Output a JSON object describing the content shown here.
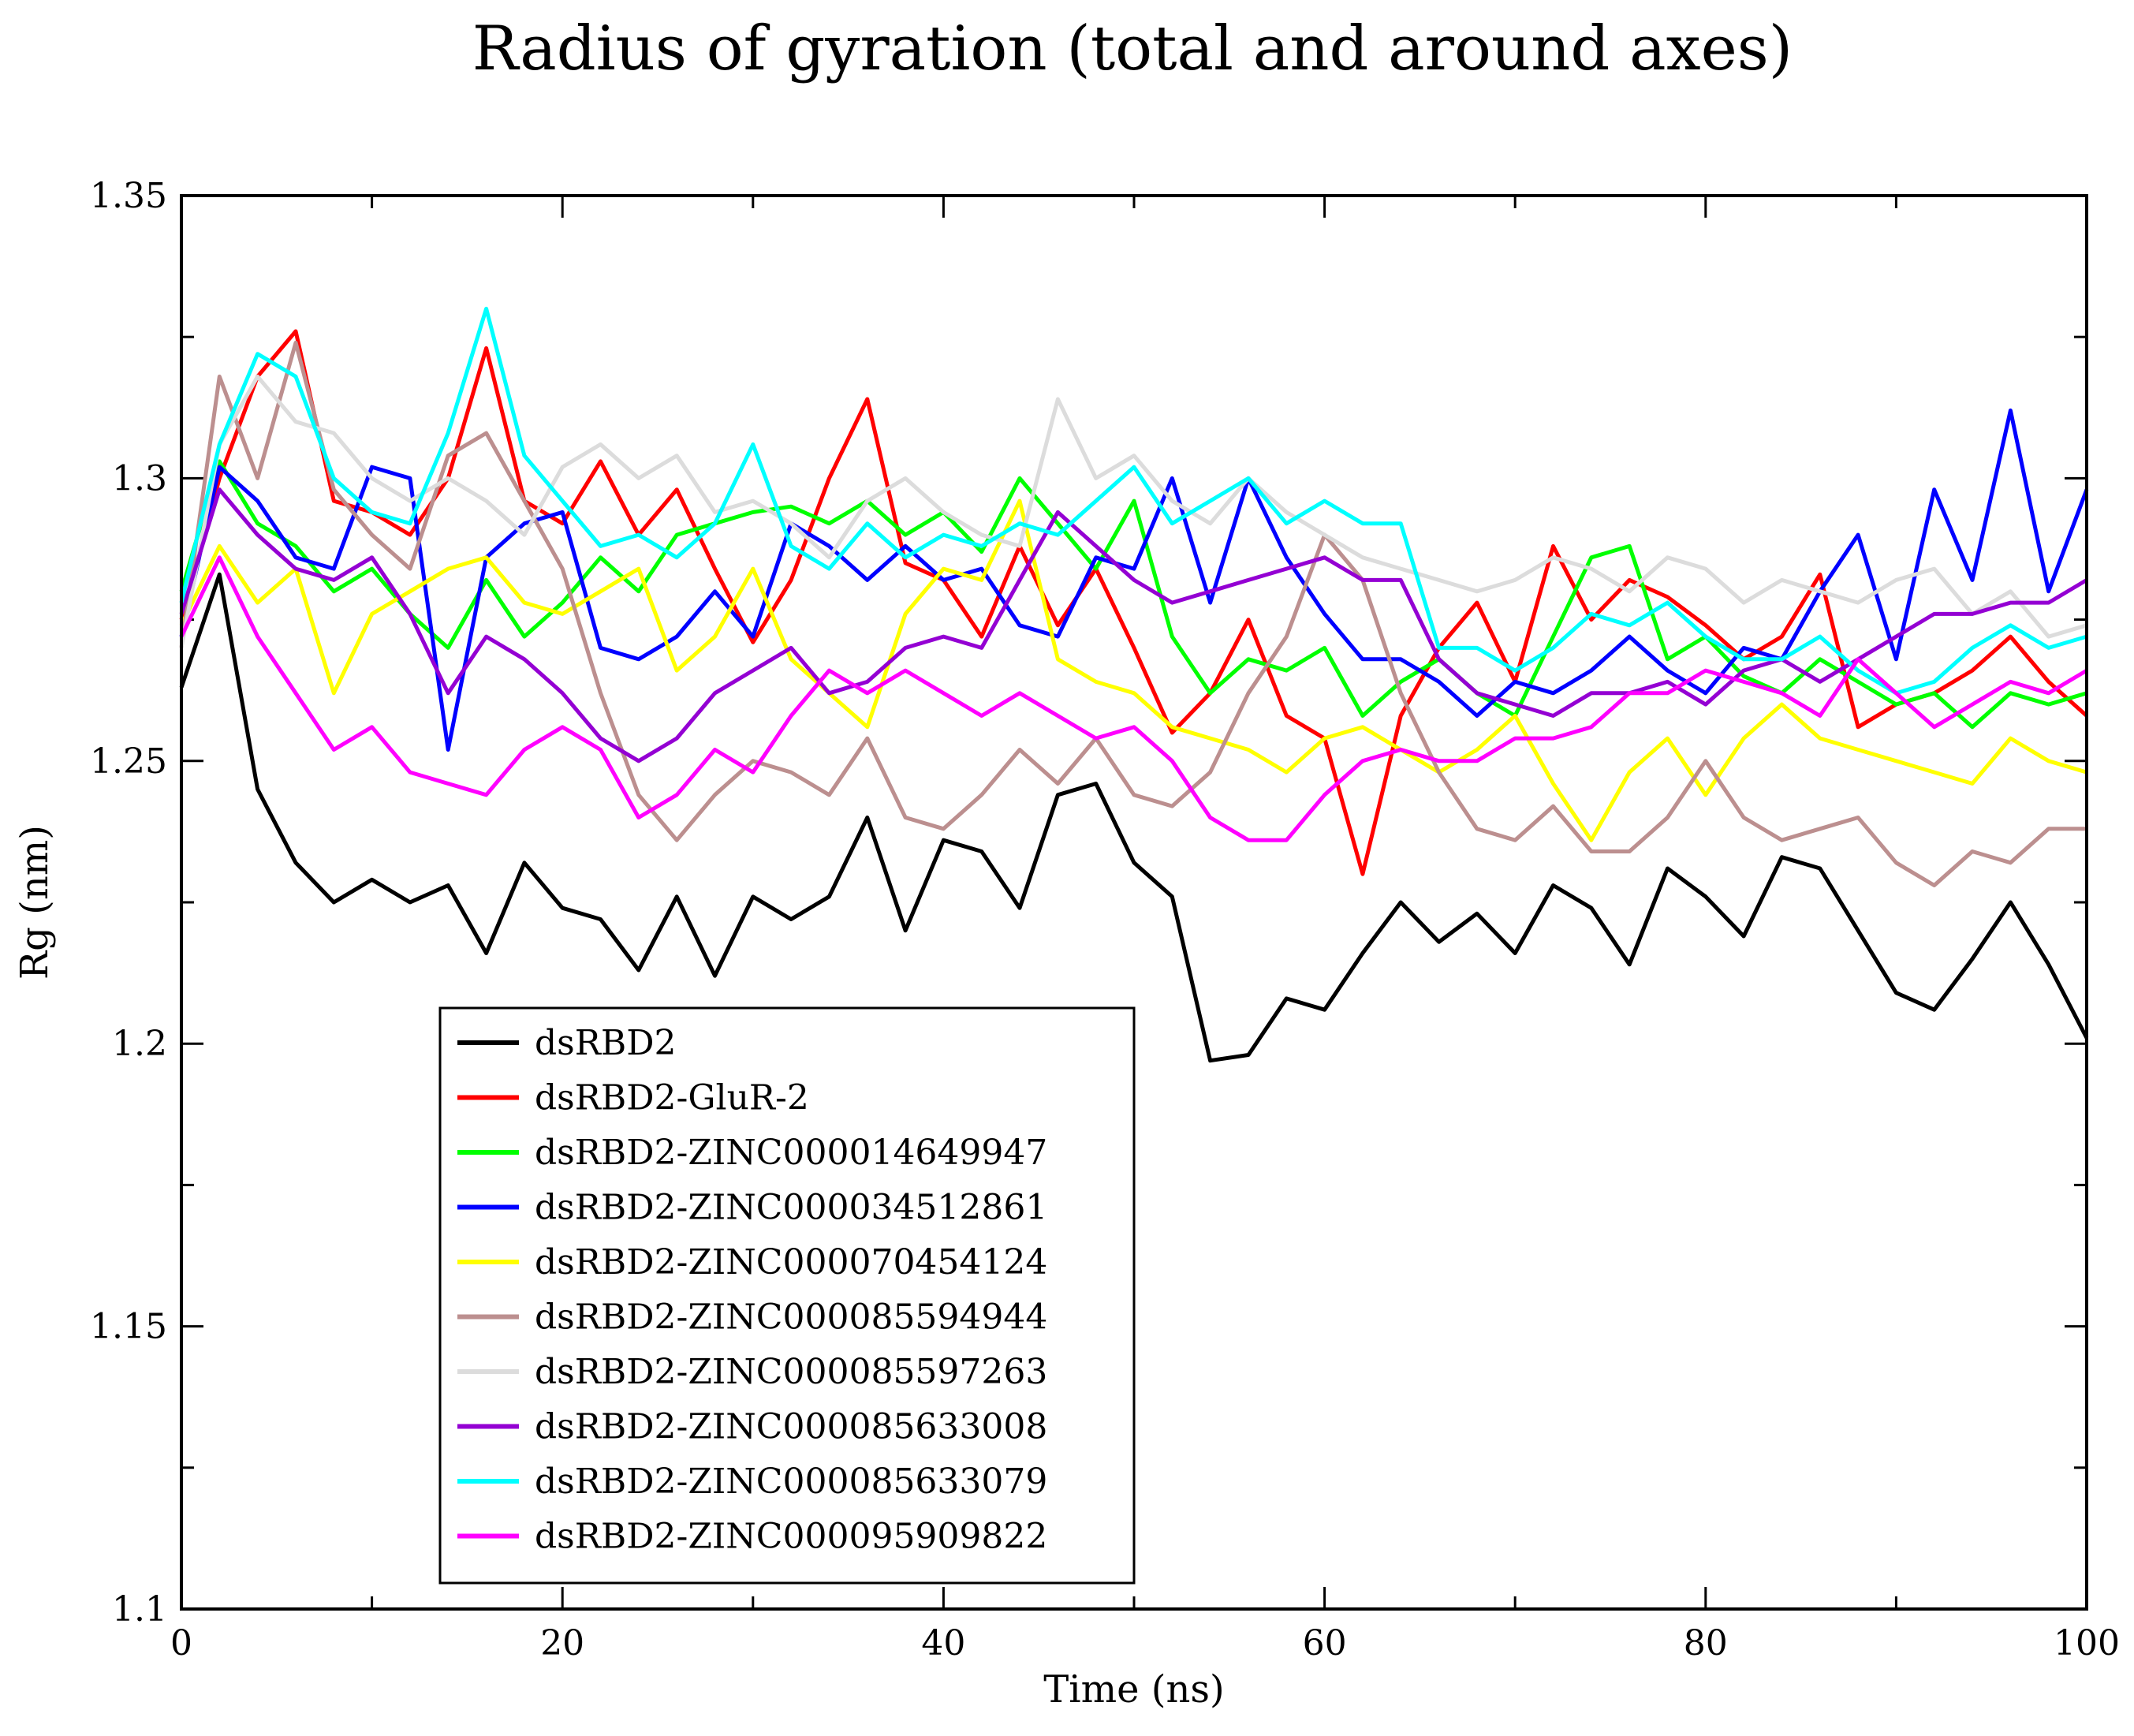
{
  "chart_data": {
    "type": "line",
    "title": "Radius of gyration (total and around axes)",
    "xlabel": "Time (ns)",
    "ylabel": "Rg (nm)",
    "xlim": [
      0,
      100
    ],
    "ylim": [
      1.1,
      1.35
    ],
    "xticks": [
      0,
      20,
      40,
      60,
      80,
      100
    ],
    "xtick_labels": [
      "0",
      "20",
      "40",
      "60",
      "80",
      "100"
    ],
    "yticks": [
      1.1,
      1.15,
      1.2,
      1.25,
      1.3,
      1.35
    ],
    "ytick_labels": [
      "1.1",
      "1.15",
      "1.2",
      "1.25",
      "1.3",
      "1.35"
    ],
    "legend_position": "bottom-left",
    "x": [
      0,
      2,
      4,
      6,
      8,
      10,
      12,
      14,
      16,
      18,
      20,
      22,
      24,
      26,
      28,
      30,
      32,
      34,
      36,
      38,
      40,
      42,
      44,
      46,
      48,
      50,
      52,
      54,
      56,
      58,
      60,
      62,
      64,
      66,
      68,
      70,
      72,
      74,
      76,
      78,
      80,
      82,
      84,
      86,
      88,
      90,
      92,
      94,
      96,
      98,
      100
    ],
    "series": [
      {
        "name": "dsRBD2",
        "color": "#000000",
        "values": [
          1.263,
          1.283,
          1.245,
          1.232,
          1.225,
          1.229,
          1.225,
          1.228,
          1.216,
          1.232,
          1.224,
          1.222,
          1.213,
          1.226,
          1.212,
          1.226,
          1.222,
          1.226,
          1.24,
          1.22,
          1.236,
          1.234,
          1.224,
          1.244,
          1.246,
          1.232,
          1.226,
          1.197,
          1.198,
          1.208,
          1.206,
          1.216,
          1.225,
          1.218,
          1.223,
          1.216,
          1.228,
          1.224,
          1.214,
          1.231,
          1.226,
          1.219,
          1.233,
          1.231,
          1.22,
          1.209,
          1.206,
          1.215,
          1.225,
          1.214,
          1.201
        ]
      },
      {
        "name": "dsRBD2-GluR-2",
        "color": "#ff0000",
        "values": [
          1.275,
          1.3,
          1.318,
          1.326,
          1.296,
          1.294,
          1.29,
          1.3,
          1.323,
          1.296,
          1.292,
          1.303,
          1.29,
          1.298,
          1.284,
          1.271,
          1.282,
          1.3,
          1.314,
          1.285,
          1.282,
          1.272,
          1.288,
          1.274,
          1.284,
          1.27,
          1.255,
          1.262,
          1.275,
          1.258,
          1.254,
          1.23,
          1.258,
          1.27,
          1.278,
          1.264,
          1.288,
          1.275,
          1.282,
          1.279,
          1.274,
          1.268,
          1.272,
          1.283,
          1.256,
          1.26,
          1.262,
          1.266,
          1.272,
          1.264,
          1.258
        ]
      },
      {
        "name": "dsRBD2-ZINC000014649947",
        "color": "#00ff00",
        "values": [
          1.28,
          1.303,
          1.292,
          1.288,
          1.28,
          1.284,
          1.276,
          1.27,
          1.282,
          1.272,
          1.278,
          1.286,
          1.28,
          1.29,
          1.292,
          1.294,
          1.295,
          1.292,
          1.296,
          1.29,
          1.294,
          1.287,
          1.3,
          1.292,
          1.284,
          1.296,
          1.272,
          1.262,
          1.268,
          1.266,
          1.27,
          1.258,
          1.264,
          1.268,
          1.262,
          1.258,
          1.272,
          1.286,
          1.288,
          1.268,
          1.272,
          1.265,
          1.262,
          1.268,
          1.264,
          1.26,
          1.262,
          1.256,
          1.262,
          1.26,
          1.262
        ]
      },
      {
        "name": "dsRBD2-ZINC000034512861",
        "color": "#0000ff",
        "values": [
          1.272,
          1.302,
          1.296,
          1.286,
          1.284,
          1.302,
          1.3,
          1.252,
          1.286,
          1.292,
          1.294,
          1.27,
          1.268,
          1.272,
          1.28,
          1.272,
          1.292,
          1.288,
          1.282,
          1.288,
          1.282,
          1.284,
          1.274,
          1.272,
          1.286,
          1.284,
          1.3,
          1.278,
          1.3,
          1.286,
          1.276,
          1.268,
          1.268,
          1.264,
          1.258,
          1.264,
          1.262,
          1.266,
          1.272,
          1.266,
          1.262,
          1.27,
          1.268,
          1.28,
          1.29,
          1.268,
          1.298,
          1.282,
          1.312,
          1.28,
          1.298
        ]
      },
      {
        "name": "dsRBD2-ZINC000070454124",
        "color": "#ffff00",
        "values": [
          1.274,
          1.288,
          1.278,
          1.284,
          1.262,
          1.276,
          1.28,
          1.284,
          1.286,
          1.278,
          1.276,
          1.28,
          1.284,
          1.266,
          1.272,
          1.284,
          1.268,
          1.262,
          1.256,
          1.276,
          1.284,
          1.282,
          1.296,
          1.268,
          1.264,
          1.262,
          1.256,
          1.254,
          1.252,
          1.248,
          1.254,
          1.256,
          1.252,
          1.248,
          1.252,
          1.258,
          1.246,
          1.236,
          1.248,
          1.254,
          1.244,
          1.254,
          1.26,
          1.254,
          1.252,
          1.25,
          1.248,
          1.246,
          1.254,
          1.25,
          1.248
        ]
      },
      {
        "name": "dsRBD2-ZINC000085594944",
        "color": "#bc8f8f",
        "values": [
          1.27,
          1.318,
          1.3,
          1.324,
          1.298,
          1.29,
          1.284,
          1.304,
          1.308,
          1.296,
          1.284,
          1.262,
          1.244,
          1.236,
          1.244,
          1.25,
          1.248,
          1.244,
          1.254,
          1.24,
          1.238,
          1.244,
          1.252,
          1.246,
          1.254,
          1.244,
          1.242,
          1.248,
          1.262,
          1.272,
          1.29,
          1.282,
          1.262,
          1.248,
          1.238,
          1.236,
          1.242,
          1.234,
          1.234,
          1.24,
          1.25,
          1.24,
          1.236,
          1.238,
          1.24,
          1.232,
          1.228,
          1.234,
          1.232,
          1.238,
          1.238
        ]
      },
      {
        "name": "dsRBD2-ZINC000085597263",
        "color": "#dcdcdc",
        "values": [
          1.27,
          1.306,
          1.318,
          1.31,
          1.308,
          1.3,
          1.296,
          1.3,
          1.296,
          1.29,
          1.302,
          1.306,
          1.3,
          1.304,
          1.294,
          1.296,
          1.292,
          1.286,
          1.296,
          1.3,
          1.294,
          1.29,
          1.288,
          1.314,
          1.3,
          1.304,
          1.296,
          1.292,
          1.3,
          1.294,
          1.29,
          1.286,
          1.284,
          1.282,
          1.28,
          1.282,
          1.286,
          1.284,
          1.28,
          1.286,
          1.284,
          1.278,
          1.282,
          1.28,
          1.278,
          1.282,
          1.284,
          1.276,
          1.28,
          1.272,
          1.274
        ]
      },
      {
        "name": "dsRBD2-ZINC000085633008",
        "color": "#9400d3",
        "values": [
          1.276,
          1.298,
          1.29,
          1.284,
          1.282,
          1.286,
          1.276,
          1.262,
          1.272,
          1.268,
          1.262,
          1.254,
          1.25,
          1.254,
          1.262,
          1.266,
          1.27,
          1.262,
          1.264,
          1.27,
          1.272,
          1.27,
          1.282,
          1.294,
          1.288,
          1.282,
          1.278,
          1.28,
          1.282,
          1.284,
          1.286,
          1.282,
          1.282,
          1.268,
          1.262,
          1.26,
          1.258,
          1.262,
          1.262,
          1.264,
          1.26,
          1.266,
          1.268,
          1.264,
          1.268,
          1.272,
          1.276,
          1.276,
          1.278,
          1.278,
          1.282
        ]
      },
      {
        "name": "dsRBD2-ZINC000085633079",
        "color": "#00ffff",
        "values": [
          1.278,
          1.306,
          1.322,
          1.318,
          1.3,
          1.294,
          1.292,
          1.308,
          1.33,
          1.304,
          1.296,
          1.288,
          1.29,
          1.286,
          1.292,
          1.306,
          1.288,
          1.284,
          1.292,
          1.286,
          1.29,
          1.288,
          1.292,
          1.29,
          1.296,
          1.302,
          1.292,
          1.296,
          1.3,
          1.292,
          1.296,
          1.292,
          1.292,
          1.27,
          1.27,
          1.266,
          1.27,
          1.276,
          1.274,
          1.278,
          1.272,
          1.268,
          1.268,
          1.272,
          1.266,
          1.262,
          1.264,
          1.27,
          1.274,
          1.27,
          1.272
        ]
      },
      {
        "name": "dsRBD2-ZINC000095909822",
        "color": "#ff00ff",
        "values": [
          1.272,
          1.286,
          1.272,
          1.262,
          1.252,
          1.256,
          1.248,
          1.246,
          1.244,
          1.252,
          1.256,
          1.252,
          1.24,
          1.244,
          1.252,
          1.248,
          1.258,
          1.266,
          1.262,
          1.266,
          1.262,
          1.258,
          1.262,
          1.258,
          1.254,
          1.256,
          1.25,
          1.24,
          1.236,
          1.236,
          1.244,
          1.25,
          1.252,
          1.25,
          1.25,
          1.254,
          1.254,
          1.256,
          1.262,
          1.262,
          1.266,
          1.264,
          1.262,
          1.258,
          1.268,
          1.262,
          1.256,
          1.26,
          1.264,
          1.262,
          1.266
        ]
      }
    ]
  }
}
